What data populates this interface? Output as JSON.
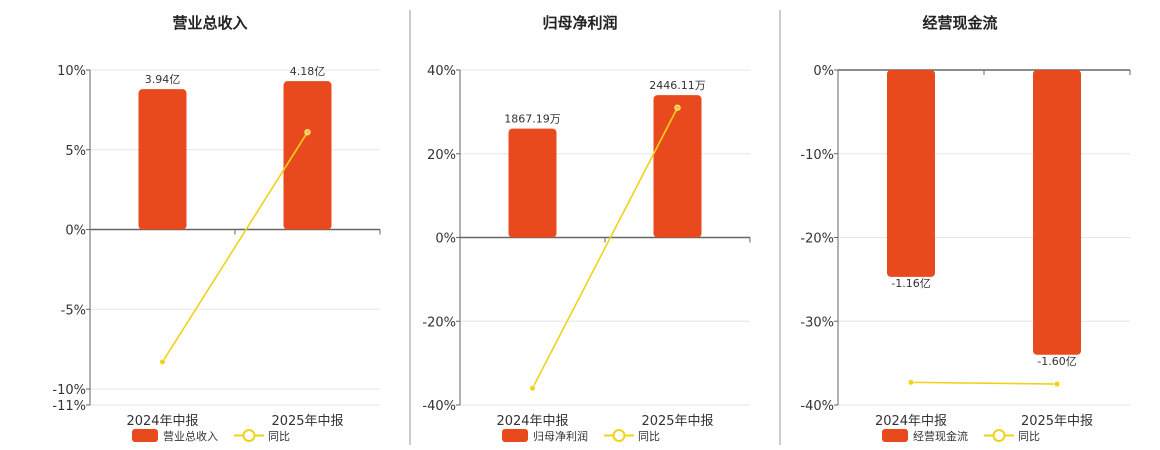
{
  "colors": {
    "bar": "#E84A1D",
    "line": "#F0D21A",
    "grid": "#E6E6E6",
    "axis": "#666666",
    "divider": "#999999"
  },
  "chart_data": [
    {
      "type": "bar",
      "title": "营业总收入",
      "categories": [
        "2024年中报",
        "2025年中报"
      ],
      "series": [
        {
          "name": "营业总收入",
          "type": "bar",
          "values": [
            8.8,
            9.3
          ],
          "labels": [
            "3.94亿",
            "4.18亿"
          ]
        },
        {
          "name": "同比",
          "type": "line",
          "values": [
            -8.3,
            6.1
          ]
        }
      ],
      "ylim": [
        -11,
        10
      ],
      "yticks": [
        10,
        5,
        0,
        -5,
        -10,
        -11
      ],
      "ytick_labels": [
        "10%",
        "5%",
        "0%",
        "-5%",
        "-10%",
        "-11%"
      ],
      "grid": true,
      "legend": "bottom"
    },
    {
      "type": "bar",
      "title": "归母净利润",
      "categories": [
        "2024年中报",
        "2025年中报"
      ],
      "series": [
        {
          "name": "归母净利润",
          "type": "bar",
          "values": [
            26.0,
            34.0
          ],
          "labels": [
            "1867.19万",
            "2446.11万"
          ]
        },
        {
          "name": "同比",
          "type": "line",
          "values": [
            -36.0,
            31.0
          ]
        }
      ],
      "ylim": [
        -40,
        40
      ],
      "yticks": [
        40,
        20,
        0,
        -20,
        -40
      ],
      "ytick_labels": [
        "40%",
        "20%",
        "0%",
        "-20%",
        "-40%"
      ],
      "grid": true,
      "legend": "bottom"
    },
    {
      "type": "bar",
      "title": "经营现金流",
      "categories": [
        "2024年中报",
        "2025年中报"
      ],
      "series": [
        {
          "name": "经营现金流",
          "type": "bar",
          "values": [
            -24.7,
            -34.0
          ],
          "labels": [
            "-1.16亿",
            "-1.60亿"
          ]
        },
        {
          "name": "同比",
          "type": "line",
          "values": [
            -37.3,
            -37.5
          ]
        }
      ],
      "ylim": [
        -40,
        0
      ],
      "yticks": [
        0,
        -10,
        -20,
        -30,
        -40
      ],
      "ytick_labels": [
        "0%",
        "-10%",
        "-20%",
        "-30%",
        "-40%"
      ],
      "grid": true,
      "legend": "bottom"
    }
  ]
}
